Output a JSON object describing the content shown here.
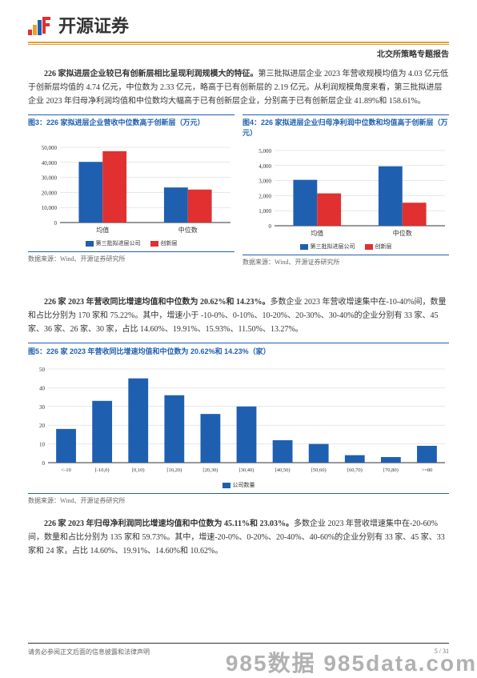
{
  "header": {
    "logo_text": "开源证券",
    "sub_header": "北交所策略专题报告"
  },
  "para1": {
    "bold": "226 家拟进层企业较已有创新层相比呈现利润规模大的特征。",
    "rest": "第三批拟进层企业 2023 年营收规模均值为 4.03 亿元低于创新层均值的 4.74 亿元，中位数为 2.33 亿元，略高于已有创新层的 2.19 亿元。从利润规模角度来看，第三批拟进层企业 2023 年归母净利润均值和中位数均大幅高于已有创新层企业，分别高于已有创新层企业 41.89%和 158.61%。"
  },
  "chart3": {
    "title": "图3：226 家拟进层企业营收中位数高于创新层（万元）",
    "type": "bar",
    "categories": [
      "均值",
      "中位数"
    ],
    "series": [
      {
        "name": "第三批拟进层公司",
        "color": "#1f5fb0",
        "values": [
          40300,
          23300
        ]
      },
      {
        "name": "创新层",
        "color": "#e03030",
        "values": [
          47400,
          21900
        ]
      }
    ],
    "ylim": [
      0,
      50000
    ],
    "ytick_step": 10000,
    "source": "数据来源：Wind、开源证券研究所"
  },
  "chart4": {
    "title": "图4：226 家拟进层企业归母净利润中位数和均值高于创新层（万元）",
    "type": "bar",
    "categories": [
      "均值",
      "中位数"
    ],
    "series": [
      {
        "name": "第三批拟进层公司",
        "color": "#1f5fb0",
        "values": [
          3050,
          3950
        ]
      },
      {
        "name": "创新层",
        "color": "#e03030",
        "values": [
          2150,
          1530
        ]
      }
    ],
    "ylim": [
      0,
      5000
    ],
    "ytick_step": 1000,
    "source": "数据来源：Wind、开源证券研究所"
  },
  "para2": {
    "bold": "226 家 2023 年营收同比增速均值和中位数为 20.62%和 14.23%。",
    "rest": "多数企业 2023 年营收增速集中在-10-40%间，数量和占比分别为 170 家和 75.22%。其中，增速小于 -10-0%、0-10%、10-20%、20-30%、30-40%的企业分别有 33 家、45 家、36 家、26 家、30 家，占比 14.60%、19.91%、15.93%、11.50%、13.27%。"
  },
  "chart5": {
    "title": "图5：226 家 2023 年营收同比增速均值和中位数为 20.62%和 14.23%（家）",
    "type": "bar",
    "categories": [
      "<-10",
      "[-10,0)",
      "[0,10)",
      "[10,20)",
      "[20,30)",
      "[30,40)",
      "[40,50)",
      "[50,60)",
      "[60,70)",
      "[70,80)",
      ">=80"
    ],
    "series_name": "公司数量",
    "series_color": "#1f5fb0",
    "values": [
      18,
      33,
      45,
      36,
      26,
      30,
      12,
      10,
      4,
      3,
      9
    ],
    "ylim": [
      0,
      50
    ],
    "ytick_step": 10,
    "source": "数据来源：Wind、开源证券研究所"
  },
  "para3": {
    "bold": "226 家 2023 年归母净利润同比增速均值和中位数为 45.11%和 23.03%。",
    "rest": "多数企业 2023 年营收增速集中在-20-60%间，数量和占比分别为 135 家和 59.73%。其中，增速-20-0%、0-20%、20-40%、40-60%的企业分别有 33 家、45 家、33 家和 24 家，占比 14.60%、19.91%、14.60%和 10.62%。"
  },
  "footer": {
    "left": "请务必参阅正文后面的信息披露和法律声明",
    "right": "5 / 31"
  },
  "watermark": "985数据 985data.com"
}
